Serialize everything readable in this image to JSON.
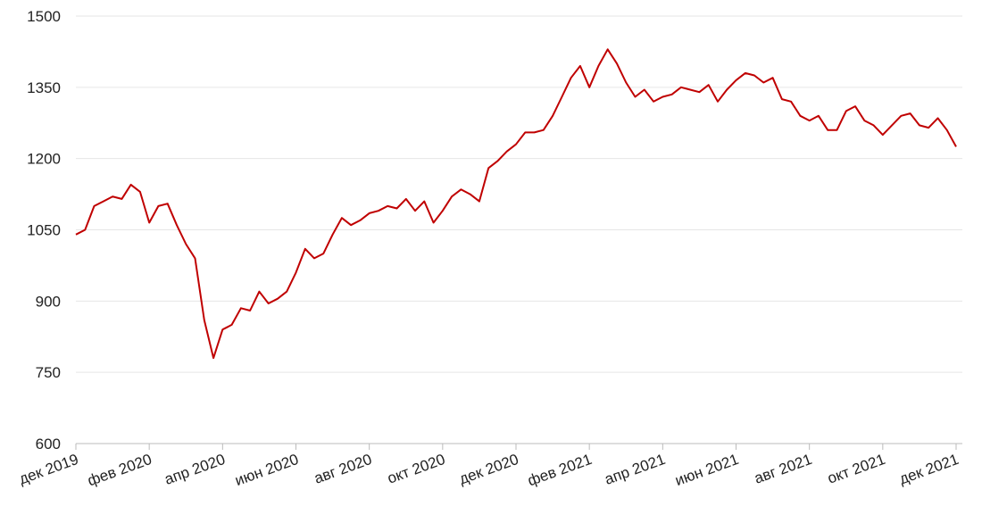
{
  "chart_data": {
    "type": "line",
    "categories": [
      "дек 2019",
      null,
      null,
      null,
      null,
      null,
      null,
      null,
      "фев 2020",
      null,
      null,
      null,
      null,
      null,
      null,
      null,
      "апр 2020",
      null,
      null,
      null,
      null,
      null,
      null,
      null,
      "июн 2020",
      null,
      null,
      null,
      null,
      null,
      null,
      null,
      "авг 2020",
      null,
      null,
      null,
      null,
      null,
      null,
      null,
      "окт 2020",
      null,
      null,
      null,
      null,
      null,
      null,
      null,
      "дек 2020",
      null,
      null,
      null,
      null,
      null,
      null,
      null,
      "фев 2021",
      null,
      null,
      null,
      null,
      null,
      null,
      null,
      "апр 2021",
      null,
      null,
      null,
      null,
      null,
      null,
      null,
      "июн 2021",
      null,
      null,
      null,
      null,
      null,
      null,
      null,
      "авг 2021",
      null,
      null,
      null,
      null,
      null,
      null,
      null,
      "окт 2021",
      null,
      null,
      null,
      null,
      null,
      null,
      null,
      "дек 2021"
    ],
    "series": [
      {
        "color": "#c00000",
        "values": [
          1040,
          1050,
          1100,
          1110,
          1120,
          1115,
          1145,
          1130,
          1065,
          1100,
          1105,
          1060,
          1020,
          990,
          860,
          780,
          840,
          850,
          885,
          880,
          920,
          895,
          905,
          920,
          960,
          1010,
          990,
          1000,
          1040,
          1075,
          1060,
          1070,
          1085,
          1090,
          1100,
          1095,
          1115,
          1090,
          1110,
          1065,
          1090,
          1120,
          1135,
          1125,
          1110,
          1180,
          1195,
          1215,
          1230,
          1255,
          1255,
          1260,
          1290,
          1330,
          1370,
          1395,
          1350,
          1395,
          1430,
          1400,
          1360,
          1330,
          1345,
          1320,
          1330,
          1335,
          1350,
          1345,
          1340,
          1355,
          1320,
          1345,
          1365,
          1380,
          1375,
          1360,
          1370,
          1325,
          1320,
          1290,
          1280,
          1290,
          1260,
          1260,
          1300,
          1310,
          1280,
          1270,
          1250,
          1270,
          1290,
          1295,
          1270,
          1265,
          1285,
          1260,
          1225
        ]
      }
    ],
    "ylim": [
      600,
      1500
    ],
    "yticks": [
      600,
      750,
      900,
      1050,
      1200,
      1350,
      1500
    ],
    "grid": true
  }
}
